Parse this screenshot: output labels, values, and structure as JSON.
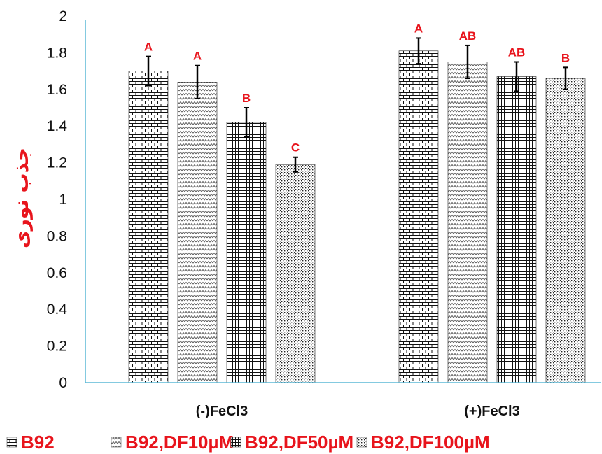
{
  "chart_data": {
    "type": "bar",
    "title": "",
    "xlabel": "",
    "ylabel": "جذب نوری",
    "ylim": [
      0,
      2
    ],
    "ytick_step": 0.2,
    "y_tick_labels": [
      "0",
      "0.2",
      "0.4",
      "0.6",
      "0.8",
      "1",
      "1.2",
      "1.4",
      "1.6",
      "1.8",
      "2"
    ],
    "categories": [
      "(-)FeCl3",
      "(+)FeCl3"
    ],
    "legend_position": "bottom",
    "grid": false,
    "colors": {
      "axis": "#5bb8d6",
      "label_red": "#e8141c",
      "bar_ink": "#111111"
    },
    "series": [
      {
        "name": "B92",
        "pattern": "brick",
        "values": [
          1.7,
          1.81
        ],
        "errors": [
          0.08,
          0.07
        ],
        "sig": [
          "A",
          "A"
        ]
      },
      {
        "name": "B92,DF10µM",
        "pattern": "zigzag",
        "values": [
          1.64,
          1.75
        ],
        "errors": [
          0.09,
          0.09
        ],
        "sig": [
          "A",
          "AB"
        ]
      },
      {
        "name": "B92,DF50µM",
        "pattern": "grid",
        "values": [
          1.42,
          1.67
        ],
        "errors": [
          0.08,
          0.08
        ],
        "sig": [
          "B",
          "AB"
        ]
      },
      {
        "name": "B92,DF100µM",
        "pattern": "dots",
        "values": [
          1.19,
          1.66
        ],
        "errors": [
          0.04,
          0.06
        ],
        "sig": [
          "C",
          "B"
        ]
      }
    ]
  }
}
